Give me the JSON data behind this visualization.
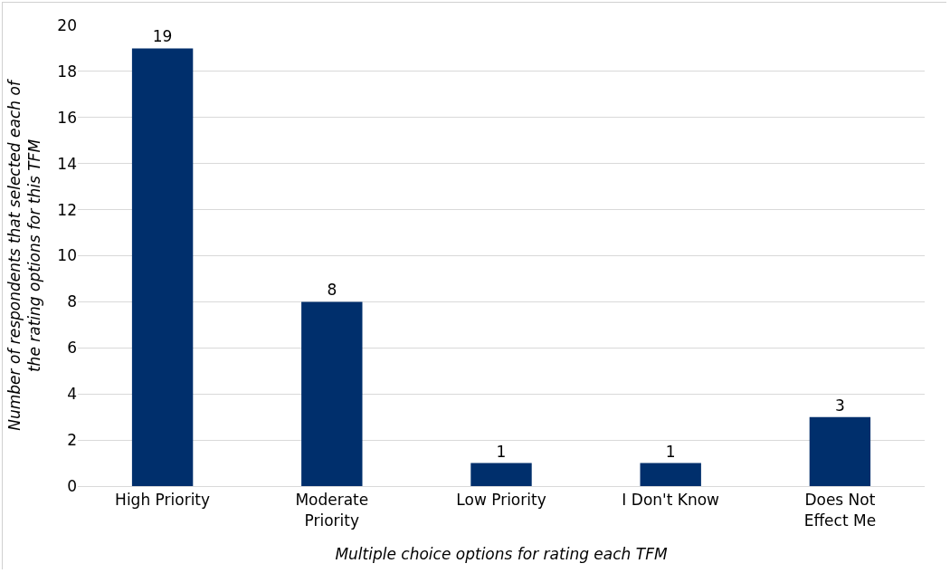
{
  "chart_data": {
    "type": "bar",
    "categories": [
      "High Priority",
      "Moderate Priority",
      "Low Priority",
      "I Don't Know",
      "Does Not Effect Me"
    ],
    "values": [
      19,
      8,
      1,
      1,
      3
    ],
    "color": "#002f6c",
    "ylim": [
      0,
      20
    ],
    "yticks": [
      0,
      2,
      4,
      6,
      8,
      10,
      12,
      14,
      16,
      18,
      20
    ],
    "grid": "y",
    "data_labels": true,
    "xlabel": "Multiple choice options for rating each TFM",
    "ylabel": "Number of respondents that selected each of the rating options for this TFM"
  }
}
